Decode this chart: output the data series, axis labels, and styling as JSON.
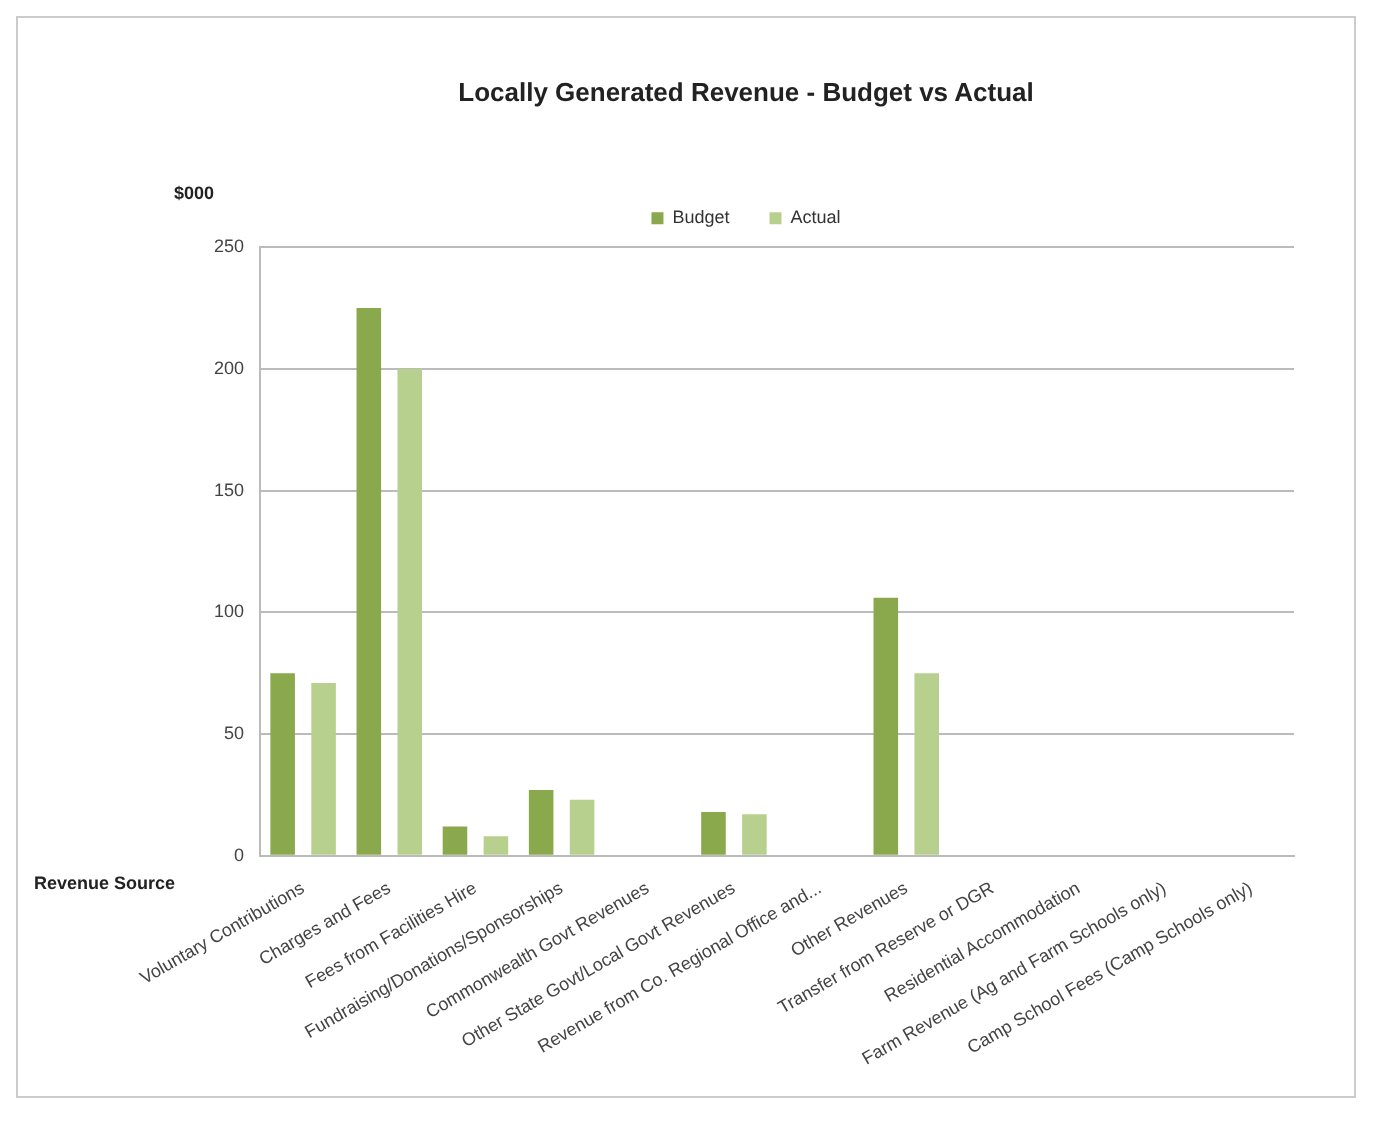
{
  "chart_data": {
    "type": "bar",
    "title": "Locally Generated Revenue - Budget vs Actual",
    "ylabel": "$000",
    "xlabel": "Revenue Source",
    "categories": [
      "Voluntary Contributions",
      "Charges and Fees",
      "Fees from Facilities Hire",
      "Fundraising/Donations/Sponsorships",
      "Commonwealth Govt Revenues",
      "Other State Govt/Local Govt Revenues",
      "Revenue from Co. Regional Office and...",
      "Other Revenues",
      "Transfer from Reserve or DGR",
      "Residential Accommodation",
      "Farm Revenue (Ag and Farm Schools only)",
      "Camp School Fees (Camp Schools only)"
    ],
    "series": [
      {
        "name": "Budget",
        "color": "#8aa84c",
        "values": [
          75,
          225,
          12,
          27,
          0,
          18,
          0,
          106,
          0,
          0,
          0,
          0
        ]
      },
      {
        "name": "Actual",
        "color": "#b8d08e",
        "values": [
          71,
          200,
          8,
          23,
          0,
          17,
          0,
          75,
          0,
          0,
          0,
          0
        ]
      }
    ],
    "ylim": [
      0,
      250
    ],
    "yticks": [
      0,
      50,
      100,
      150,
      200,
      250
    ],
    "grid": "y",
    "legend": "top"
  }
}
